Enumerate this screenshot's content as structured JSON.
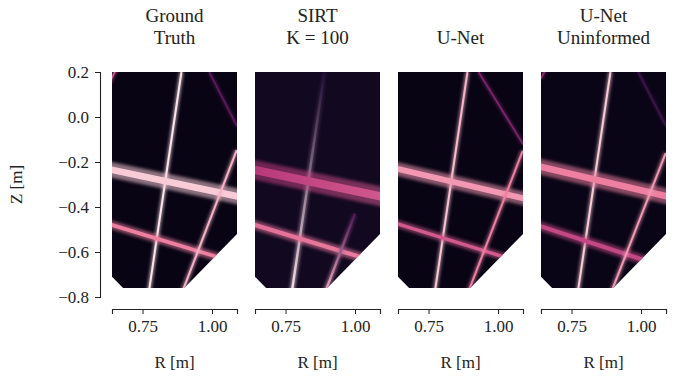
{
  "chart_data": [
    {
      "type": "image",
      "title": "Ground\nTruth",
      "xlabel": "R [m]",
      "ylabel": "Z [m]",
      "xlim": [
        0.64,
        1.09
      ],
      "ylim": [
        -0.8,
        0.2
      ],
      "xticks": [
        0.75,
        {
          "value": 1.0,
          "label": "1.00"
        }
      ],
      "yticks": [
        0.2,
        {
          "value": 0,
          "label": "0.0"
        },
        {
          "value": -0.2,
          "label": "−0.2"
        },
        {
          "value": -0.4,
          "label": "−0.4"
        },
        {
          "value": -0.6,
          "label": "−0.6"
        },
        {
          "value": -0.8,
          "label": "−0.8"
        }
      ],
      "boundary": [
        [
          0.64,
          0.2
        ],
        [
          1.09,
          0.2
        ],
        [
          1.09,
          -0.52
        ],
        [
          0.9,
          -0.76
        ],
        [
          0.68,
          -0.76
        ],
        [
          0.64,
          -0.71
        ]
      ],
      "background": 0.02,
      "features": [
        {
          "from": [
            0.77,
            -0.8
          ],
          "to": [
            0.89,
            0.2
          ],
          "width": 0.012,
          "intensity": [
            1.0,
            1.0
          ]
        },
        {
          "from": [
            0.6,
            -0.225
          ],
          "to": [
            1.12,
            -0.36
          ],
          "width": 0.04,
          "intensity": [
            0.95,
            0.95
          ]
        },
        {
          "from": [
            0.6,
            -0.465
          ],
          "to": [
            1.12,
            -0.66
          ],
          "width": 0.022,
          "intensity": [
            0.8,
            0.8
          ]
        },
        {
          "from": [
            0.886,
            -0.8
          ],
          "to": [
            1.089,
            -0.147
          ],
          "width": 0.012,
          "intensity": [
            0.9,
            0.9
          ]
        },
        {
          "from": [
            0.99,
            0.2
          ],
          "to": [
            1.09,
            -0.04
          ],
          "width": 0.01,
          "intensity": [
            0.35,
            0.35
          ]
        },
        {
          "from": [
            0.63,
            0.15
          ],
          "to": [
            0.67,
            0.25
          ],
          "width": 0.01,
          "intensity": [
            0.7,
            0.7
          ]
        }
      ]
    },
    {
      "type": "image",
      "title": "SIRT\nK = 100",
      "xlabel": "R [m]",
      "xlim": [
        0.64,
        1.09
      ],
      "ylim": [
        -0.8,
        0.2
      ],
      "xticks": [
        0.75,
        {
          "value": 1.0,
          "label": "1.00"
        }
      ],
      "boundary": [
        [
          0.64,
          0.2
        ],
        [
          1.09,
          0.2
        ],
        [
          1.09,
          -0.52
        ],
        [
          0.9,
          -0.76
        ],
        [
          0.68,
          -0.76
        ],
        [
          0.64,
          -0.71
        ]
      ],
      "background": 0.07,
      "features": [
        {
          "from": [
            0.77,
            -0.8
          ],
          "to": [
            0.89,
            0.2
          ],
          "width": 0.014,
          "intensity": [
            1.0,
            0.15
          ]
        },
        {
          "from": [
            0.6,
            -0.225
          ],
          "to": [
            1.12,
            -0.36
          ],
          "width": 0.05,
          "intensity": [
            0.6,
            0.7
          ]
        },
        {
          "from": [
            0.6,
            -0.465
          ],
          "to": [
            1.12,
            -0.66
          ],
          "width": 0.025,
          "intensity": [
            0.75,
            0.8
          ]
        },
        {
          "from": [
            0.886,
            -0.8
          ],
          "to": [
            1.0,
            -0.43
          ],
          "width": 0.014,
          "intensity": [
            0.9,
            0.3
          ]
        }
      ]
    },
    {
      "type": "image",
      "title": "U-Net",
      "xlabel": "R [m]",
      "xlim": [
        0.64,
        1.09
      ],
      "ylim": [
        -0.8,
        0.2
      ],
      "xticks": [
        0.75,
        {
          "value": 1.0,
          "label": "1.00"
        }
      ],
      "boundary": [
        [
          0.64,
          0.2
        ],
        [
          1.09,
          0.2
        ],
        [
          1.09,
          -0.52
        ],
        [
          0.9,
          -0.76
        ],
        [
          0.68,
          -0.76
        ],
        [
          0.64,
          -0.71
        ]
      ],
      "background": 0.02,
      "features": [
        {
          "from": [
            0.77,
            -0.8
          ],
          "to": [
            0.89,
            0.2
          ],
          "width": 0.012,
          "intensity": [
            0.95,
            0.9
          ]
        },
        {
          "from": [
            0.6,
            -0.22
          ],
          "to": [
            1.12,
            -0.37
          ],
          "width": 0.035,
          "intensity": [
            0.85,
            0.85
          ]
        },
        {
          "from": [
            0.6,
            -0.46
          ],
          "to": [
            1.12,
            -0.66
          ],
          "width": 0.02,
          "intensity": [
            0.7,
            0.7
          ]
        },
        {
          "from": [
            0.886,
            -0.8
          ],
          "to": [
            1.089,
            -0.15
          ],
          "width": 0.012,
          "intensity": [
            0.8,
            0.8
          ]
        },
        {
          "from": [
            0.93,
            0.2
          ],
          "to": [
            1.09,
            -0.12
          ],
          "width": 0.01,
          "intensity": [
            0.45,
            0.45
          ]
        }
      ]
    },
    {
      "type": "image",
      "title": "U-Net\nUninformed",
      "xlabel": "R [m]",
      "xlim": [
        0.64,
        1.09
      ],
      "ylim": [
        -0.8,
        0.2
      ],
      "xticks": [
        0.75,
        {
          "value": 1.0,
          "label": "1.00"
        }
      ],
      "boundary": [
        [
          0.64,
          0.2
        ],
        [
          1.09,
          0.2
        ],
        [
          1.09,
          -0.52
        ],
        [
          0.9,
          -0.76
        ],
        [
          0.68,
          -0.76
        ],
        [
          0.64,
          -0.71
        ]
      ],
      "background": 0.03,
      "features": [
        {
          "from": [
            0.77,
            -0.8
          ],
          "to": [
            0.89,
            0.2
          ],
          "width": 0.012,
          "intensity": [
            0.95,
            0.95
          ]
        },
        {
          "from": [
            0.6,
            -0.21
          ],
          "to": [
            1.12,
            -0.36
          ],
          "width": 0.04,
          "intensity": [
            0.8,
            0.8
          ]
        },
        {
          "from": [
            0.6,
            -0.47
          ],
          "to": [
            1.12,
            -0.68
          ],
          "width": 0.025,
          "intensity": [
            0.65,
            0.65
          ]
        },
        {
          "from": [
            0.886,
            -0.8
          ],
          "to": [
            1.089,
            -0.16
          ],
          "width": 0.012,
          "intensity": [
            0.85,
            0.85
          ]
        },
        {
          "from": [
            0.99,
            0.2
          ],
          "to": [
            1.09,
            -0.04
          ],
          "width": 0.01,
          "intensity": [
            0.25,
            0.25
          ]
        },
        {
          "from": [
            0.64,
            0.17
          ],
          "to": [
            0.66,
            0.22
          ],
          "width": 0.01,
          "intensity": [
            0.5,
            0.5
          ]
        }
      ]
    }
  ]
}
